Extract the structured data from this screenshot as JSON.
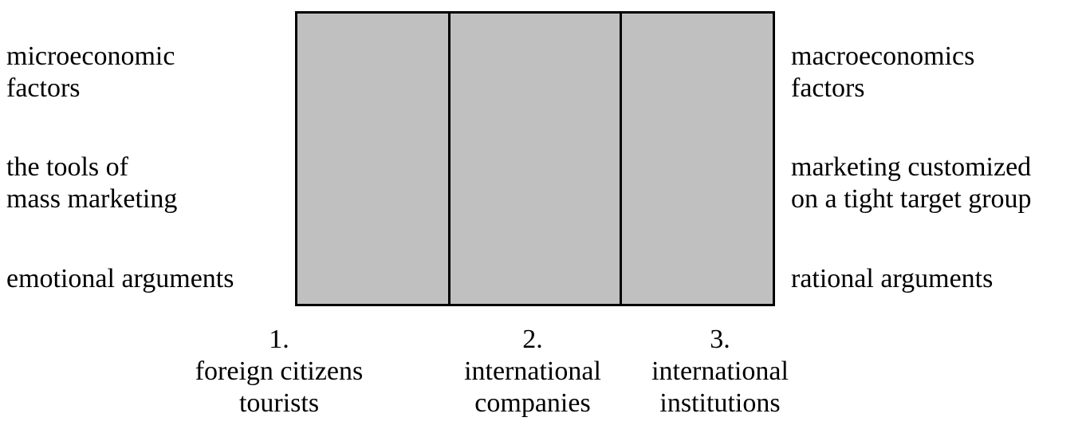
{
  "left_factors": [
    "microeconomic\nfactors",
    "the tools of\nmass marketing",
    "emotional arguments"
  ],
  "right_factors": [
    "macroeconomics\nfactors",
    "marketing customized\non a tight target group",
    "rational arguments"
  ],
  "columns": [
    {
      "number": "1.",
      "label": "foreign citizens\ntourists"
    },
    {
      "number": "2.",
      "label": "international\ncompanies"
    },
    {
      "number": "3.",
      "label": "international\ninstitutions"
    }
  ],
  "colors": {
    "box_fill": "#c0c0c0",
    "lines": "#000000",
    "text": "#000000"
  }
}
